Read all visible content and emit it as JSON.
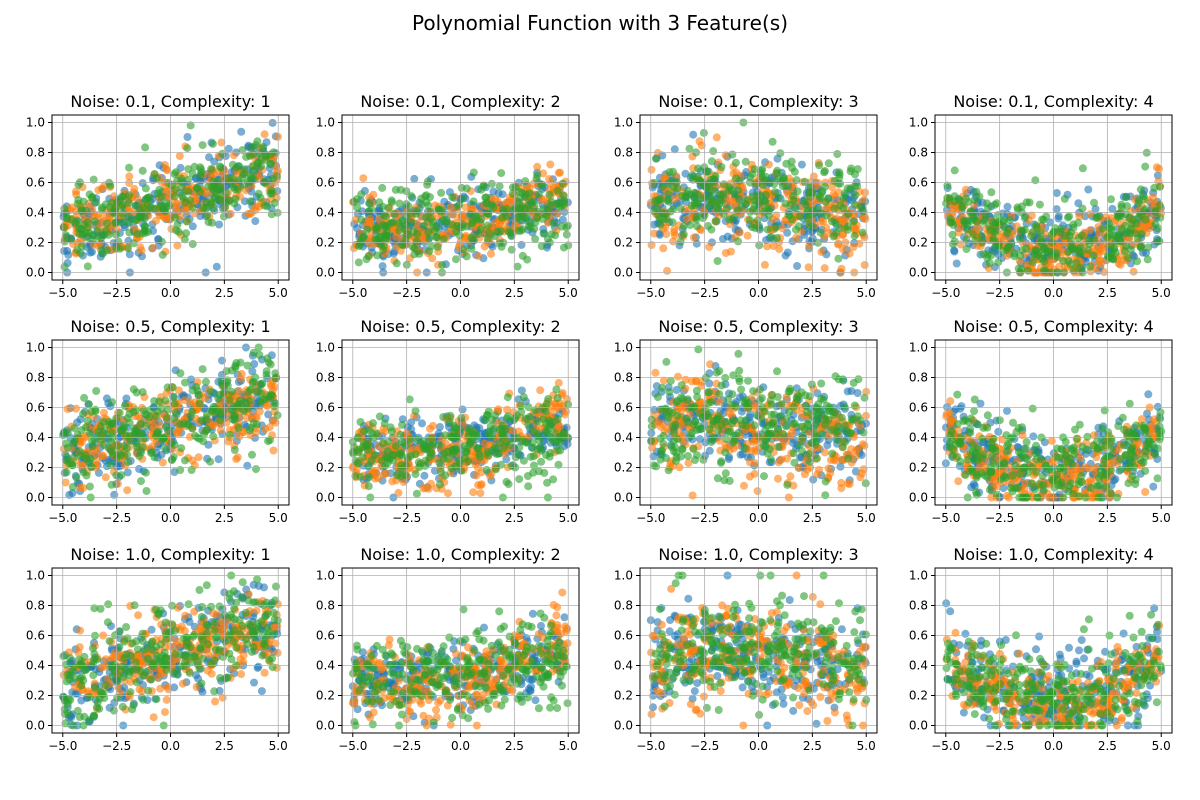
{
  "figure": {
    "title": "Polynomial Function with 3 Feature(s)"
  },
  "colors": {
    "feature_1": "#1f77b4",
    "feature_2": "#ff7f0e",
    "feature_3": "#2ca02c",
    "grid": "#b0b0b0",
    "axes": "#000000"
  },
  "chart_data": {
    "type": "scatter",
    "layout": {
      "rows": 3,
      "cols": 4
    },
    "xlim": [
      -5.5,
      5.5
    ],
    "ylim": [
      -0.05,
      1.05
    ],
    "x_ticks": [
      -5.0,
      -2.5,
      0.0,
      2.5,
      5.0
    ],
    "x_tick_labels": [
      "−5.0",
      "−2.5",
      "0.0",
      "2.5",
      "5.0"
    ],
    "y_ticks": [
      0.0,
      0.2,
      0.4,
      0.6,
      0.8,
      1.0
    ],
    "y_tick_labels": [
      "0.0",
      "0.2",
      "0.4",
      "0.6",
      "0.8",
      "1.0"
    ],
    "grid": true,
    "legend": "none",
    "marker_alpha": 0.6,
    "series_colors": [
      "#1f77b4",
      "#ff7f0e",
      "#2ca02c"
    ],
    "subplots": [
      {
        "title": "Noise: 0.1, Complexity: 1",
        "noise": 0.1,
        "complexity": 1
      },
      {
        "title": "Noise: 0.1, Complexity: 2",
        "noise": 0.1,
        "complexity": 2
      },
      {
        "title": "Noise: 0.1, Complexity: 3",
        "noise": 0.1,
        "complexity": 3
      },
      {
        "title": "Noise: 0.1, Complexity: 4",
        "noise": 0.1,
        "complexity": 4
      },
      {
        "title": "Noise: 0.5, Complexity: 1",
        "noise": 0.5,
        "complexity": 1
      },
      {
        "title": "Noise: 0.5, Complexity: 2",
        "noise": 0.5,
        "complexity": 2
      },
      {
        "title": "Noise: 0.5, Complexity: 3",
        "noise": 0.5,
        "complexity": 3
      },
      {
        "title": "Noise: 0.5, Complexity: 4",
        "noise": 0.5,
        "complexity": 4
      },
      {
        "title": "Noise: 1.0, Complexity: 1",
        "noise": 1.0,
        "complexity": 1
      },
      {
        "title": "Noise: 1.0, Complexity: 2",
        "noise": 1.0,
        "complexity": 2
      },
      {
        "title": "Noise: 1.0, Complexity: 3",
        "noise": 1.0,
        "complexity": 3
      },
      {
        "title": "Noise: 1.0, Complexity: 4",
        "noise": 1.0,
        "complexity": 4
      }
    ]
  }
}
